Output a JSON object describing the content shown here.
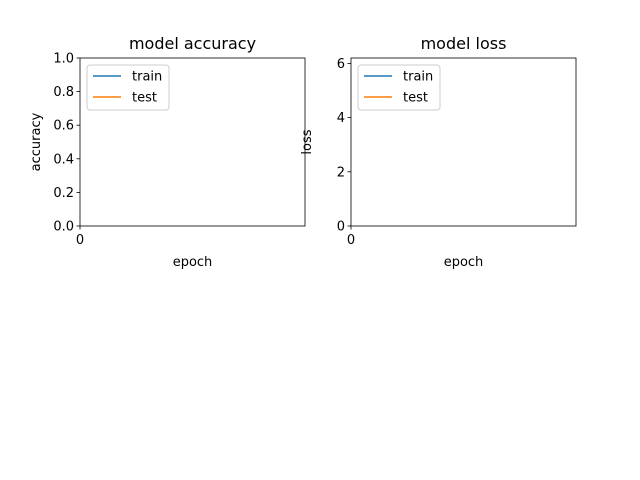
{
  "chart_data": [
    {
      "type": "line",
      "title": "model accuracy",
      "xlabel": "epoch",
      "ylabel": "accuracy",
      "xlim": [
        0,
        1
      ],
      "ylim": [
        0,
        1
      ],
      "x_ticks": [
        "0"
      ],
      "y_ticks": [
        "0.0",
        "0.2",
        "0.4",
        "0.6",
        "0.8",
        "1.0"
      ],
      "legend": "upper-left",
      "series": [
        {
          "name": "train",
          "color": "#1f77b4",
          "x": [],
          "y": []
        },
        {
          "name": "test",
          "color": "#ff7f0e",
          "x": [],
          "y": []
        }
      ]
    },
    {
      "type": "line",
      "title": "model loss",
      "xlabel": "epoch",
      "ylabel": "loss",
      "xlim": [
        0,
        1
      ],
      "ylim": [
        0,
        6.2
      ],
      "x_ticks": [
        "0"
      ],
      "y_ticks": [
        "0",
        "2",
        "4",
        "6"
      ],
      "legend": "upper-left",
      "series": [
        {
          "name": "train",
          "color": "#1f77b4",
          "x": [],
          "y": []
        },
        {
          "name": "test",
          "color": "#ff7f0e",
          "x": [],
          "y": []
        }
      ]
    }
  ]
}
